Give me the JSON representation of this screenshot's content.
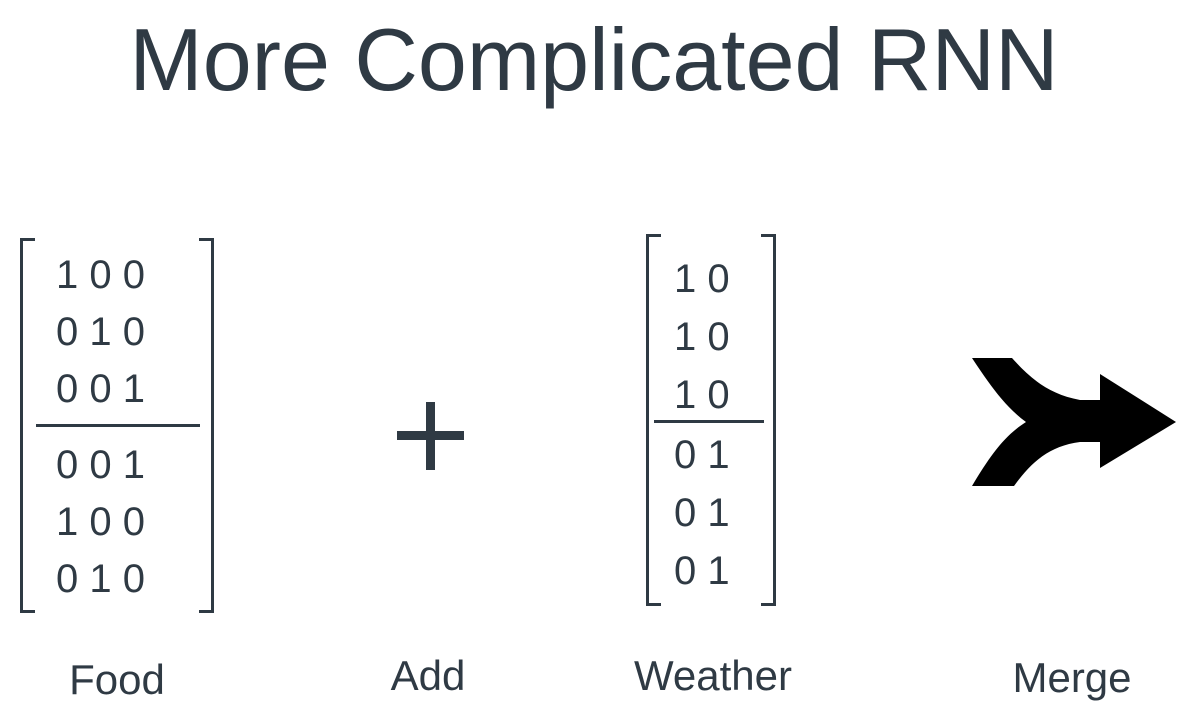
{
  "slide": {
    "title": "More Complicated RNN"
  },
  "food": {
    "rows": [
      "1 0 0",
      "0 1 0",
      "0 0 1",
      "0 0 1",
      "1 0 0",
      "0 1 0"
    ],
    "caption": "Food"
  },
  "operator": {
    "symbol": "plus-icon",
    "caption": "Add"
  },
  "weather": {
    "rows": [
      "1 0",
      "1 0",
      "1 0",
      "0 1",
      "0 1",
      "0 1"
    ],
    "caption": "Weather"
  },
  "merge": {
    "icon": "merge-arrow-icon",
    "caption": "Merge"
  }
}
